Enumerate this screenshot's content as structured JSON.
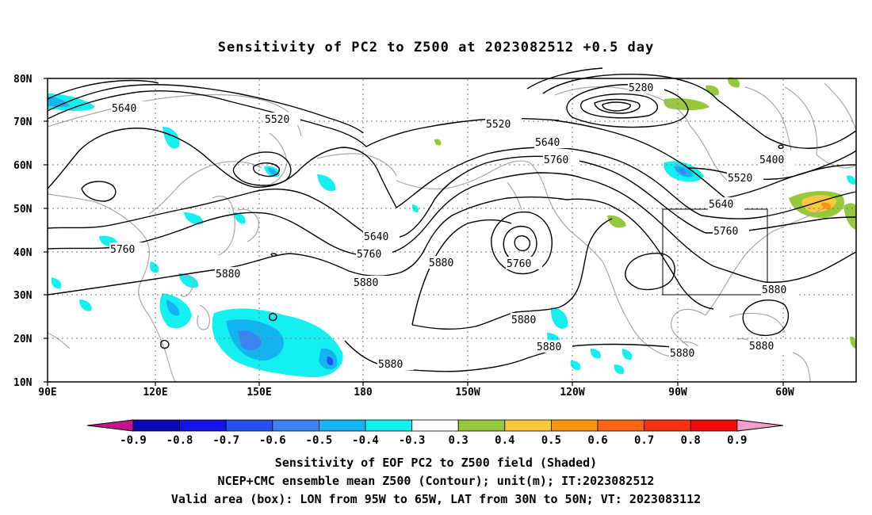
{
  "title": "Sensitivity of PC2 to Z500 at 2023082512 +0.5 day",
  "map": {
    "lat_labels": [
      "80N",
      "70N",
      "60N",
      "50N",
      "40N",
      "30N",
      "20N",
      "10N"
    ],
    "lon_labels": [
      "90E",
      "120E",
      "150E",
      "180",
      "150W",
      "120W",
      "90W",
      "60W"
    ],
    "valid_box": {
      "lon_from": "95W",
      "lon_to": "65W",
      "lat_from": "30N",
      "lat_to": "50N"
    },
    "contour_labels": [
      "5280",
      "5640",
      "5520",
      "5520",
      "5640",
      "5760",
      "5400",
      "5520",
      "5640",
      "5760",
      "5640",
      "5760",
      "5760",
      "5880",
      "5880",
      "5760",
      "5880",
      "5880",
      "5880",
      "5880",
      "5880",
      "5880",
      "5880"
    ]
  },
  "colorbar": {
    "labels": [
      "-0.9",
      "-0.8",
      "-0.7",
      "-0.6",
      "-0.5",
      "-0.4",
      "-0.3",
      "0.3",
      "0.4",
      "0.5",
      "0.6",
      "0.7",
      "0.8",
      "0.9"
    ],
    "colors": [
      "#0a0ab4",
      "#1414e6",
      "#2850f0",
      "#3c82f0",
      "#14b4f0",
      "#14f0f0",
      "#ffffff",
      "#96c83c",
      "#fac83c",
      "#fa9614",
      "#fa6414",
      "#fa3214",
      "#f00a0a"
    ],
    "low_arrow_color": "#c8148c",
    "high_arrow_color": "#f0a0c8"
  },
  "captions": [
    "Sensitivity of EOF PC2 to Z500 field (Shaded)",
    "NCEP+CMC ensemble mean Z500 (Contour); unit(m); IT:2023082512",
    "Valid area (box): LON from 95W to 65W, LAT from 30N to 50N; VT: 2023083112"
  ]
}
